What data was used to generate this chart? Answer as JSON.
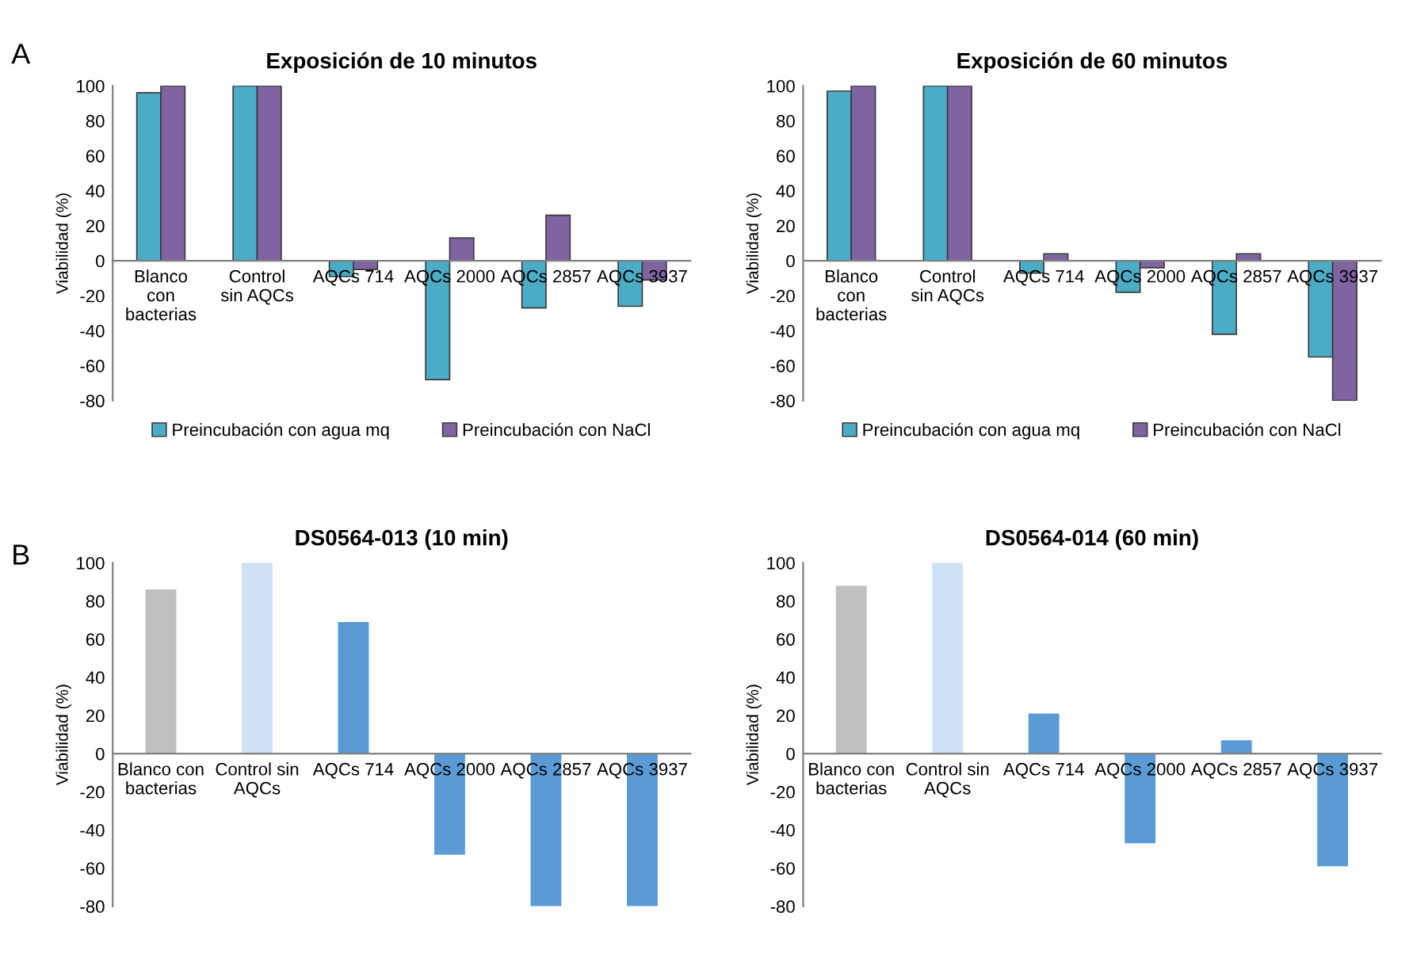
{
  "chart_data": [
    {
      "type": "bar",
      "title": "Exposición de 10 minutos",
      "ylabel": "Viabilidad (%)",
      "annotations": [
        "A"
      ],
      "categories": [
        "Blanco\ncon\nbacterias",
        "Control\nsin AQCs",
        "AQCs 714",
        "AQCs 2000",
        "AQCs 2857",
        "AQCs 3937"
      ],
      "series": [
        {
          "name": "Preincubación con agua mq",
          "color": "#4bacc6",
          "values": [
            96,
            100,
            -9,
            -68,
            -27,
            -26
          ]
        },
        {
          "name": "Preincubación con NaCl",
          "color": "#8064a2",
          "values": [
            100,
            100,
            -5,
            13,
            26,
            -11
          ]
        }
      ],
      "ylim": [
        -80,
        100
      ],
      "yticks": [
        -80,
        -60,
        -40,
        -20,
        0,
        20,
        40,
        60,
        80,
        100
      ],
      "grid": false,
      "legend": "bottom"
    },
    {
      "type": "bar",
      "title": "Exposición de 60 minutos",
      "ylabel": "Viabilidad (%)",
      "categories": [
        "Blanco\ncon\nbacterias",
        "Control\nsin AQCs",
        "AQCs 714",
        "AQCs 2000",
        "AQCs 2857",
        "AQCs 3937"
      ],
      "series": [
        {
          "name": "Preincubación con agua mq",
          "color": "#4bacc6",
          "values": [
            97,
            100,
            -7,
            -18,
            -42,
            -55
          ]
        },
        {
          "name": "Preincubación con NaCl",
          "color": "#8064a2",
          "values": [
            100,
            100,
            4,
            -4,
            4,
            -80
          ]
        }
      ],
      "ylim": [
        -80,
        100
      ],
      "yticks": [
        -80,
        -60,
        -40,
        -20,
        0,
        20,
        40,
        60,
        80,
        100
      ],
      "grid": false,
      "legend": "bottom"
    },
    {
      "type": "bar",
      "title": "DS0564-013 (10 min)",
      "ylabel": "Viabilidad (%)",
      "annotations": [
        "B"
      ],
      "categories": [
        "Blanco con\nbacterias",
        "Control sin\nAQCs",
        "AQCs 714",
        "AQCs 2000",
        "AQCs 2857",
        "AQCs 3937"
      ],
      "values": [
        86,
        100,
        69,
        -53,
        -80,
        -80
      ],
      "colors": [
        "#bfbfbf",
        "#cfe2f3",
        "#5b9bd5",
        "#5b9bd5",
        "#5b9bd5",
        "#5b9bd5"
      ],
      "ylim": [
        -80,
        100
      ],
      "yticks": [
        -80,
        -60,
        -40,
        -20,
        0,
        20,
        40,
        60,
        80,
        100
      ],
      "grid": false
    },
    {
      "type": "bar",
      "title": "DS0564-014 (60 min)",
      "ylabel": "Viabilidad (%)",
      "categories": [
        "Blanco con\nbacterias",
        "Control sin\nAQCs",
        "AQCs 714",
        "AQCs 2000",
        "AQCs 2857",
        "AQCs 3937"
      ],
      "values": [
        88,
        100,
        21,
        -47,
        7,
        -59
      ],
      "colors": [
        "#bfbfbf",
        "#cfe2f3",
        "#5b9bd5",
        "#5b9bd5",
        "#5b9bd5",
        "#5b9bd5"
      ],
      "ylim": [
        -80,
        100
      ],
      "yticks": [
        -80,
        -60,
        -40,
        -20,
        0,
        20,
        40,
        60,
        80,
        100
      ],
      "grid": false
    }
  ]
}
